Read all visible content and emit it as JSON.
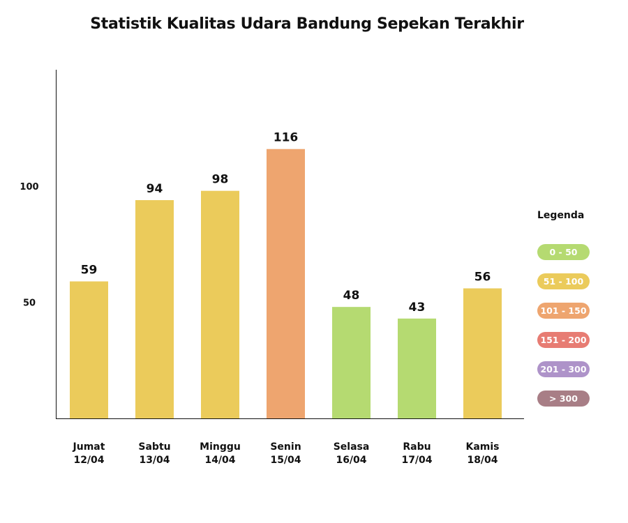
{
  "chart_data": {
    "type": "bar",
    "title": "Statistik Kualitas Udara Bandung Sepekan Terakhir",
    "categories": [
      [
        "Jumat",
        "12/04"
      ],
      [
        "Sabtu",
        "13/04"
      ],
      [
        "Minggu",
        "14/04"
      ],
      [
        "Senin",
        "15/04"
      ],
      [
        "Selasa",
        "16/04"
      ],
      [
        "Rabu",
        "17/04"
      ],
      [
        "Kamis",
        "18/04"
      ]
    ],
    "values": [
      59,
      94,
      98,
      116,
      48,
      43,
      56
    ],
    "bar_colors": [
      "#ebcb5b",
      "#ebcb5b",
      "#ebcb5b",
      "#eea56f",
      "#b5da71",
      "#b5da71",
      "#ebcb5b"
    ],
    "yticks": [
      50,
      100
    ],
    "ylim": [
      0,
      150
    ],
    "xlabel": "",
    "ylabel": "",
    "grid": false,
    "legend": {
      "title": "Legenda",
      "placement": "right",
      "items": [
        {
          "label": "0 - 50",
          "color": "#b5da71"
        },
        {
          "label": "51 - 100",
          "color": "#ebcb5b"
        },
        {
          "label": "101 - 150",
          "color": "#eea56f"
        },
        {
          "label": "151 - 200",
          "color": "#e77c73"
        },
        {
          "label": "201 - 300",
          "color": "#ae93c9"
        },
        {
          "label": "> 300",
          "color": "#a87e86"
        }
      ]
    }
  }
}
